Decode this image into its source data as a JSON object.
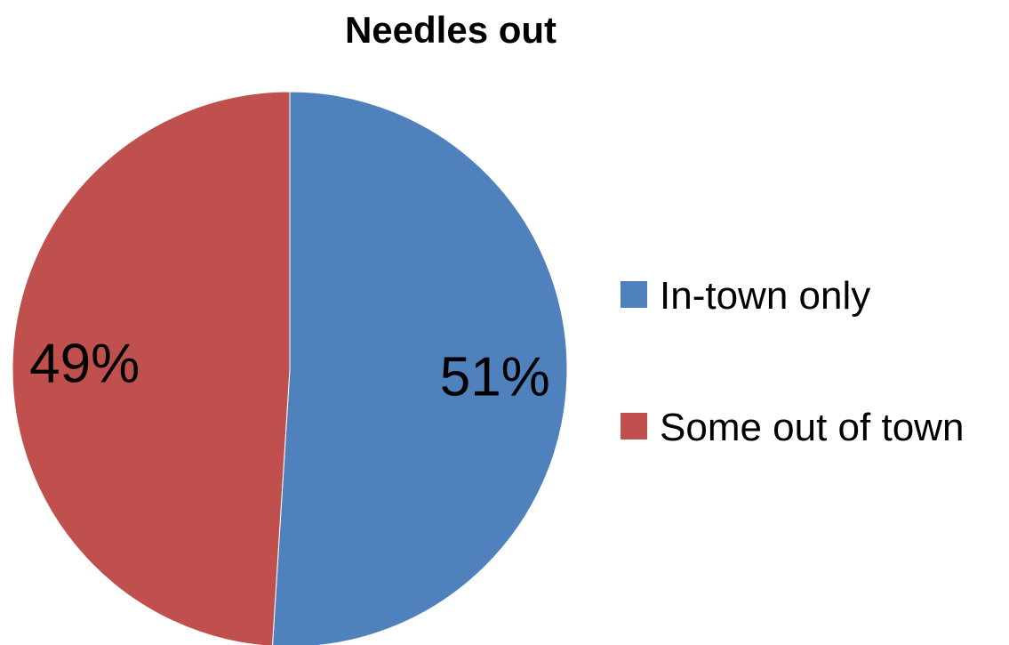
{
  "chart_data": {
    "type": "pie",
    "title": "Needles out",
    "categories": [
      "In-town only",
      "Some out of town"
    ],
    "values": [
      51,
      49
    ],
    "data_labels": [
      "51%",
      "49%"
    ],
    "colors": [
      "#4F81BD",
      "#C0504D"
    ],
    "start_angle_deg": 0,
    "direction": "clockwise",
    "legend_position": "right"
  }
}
